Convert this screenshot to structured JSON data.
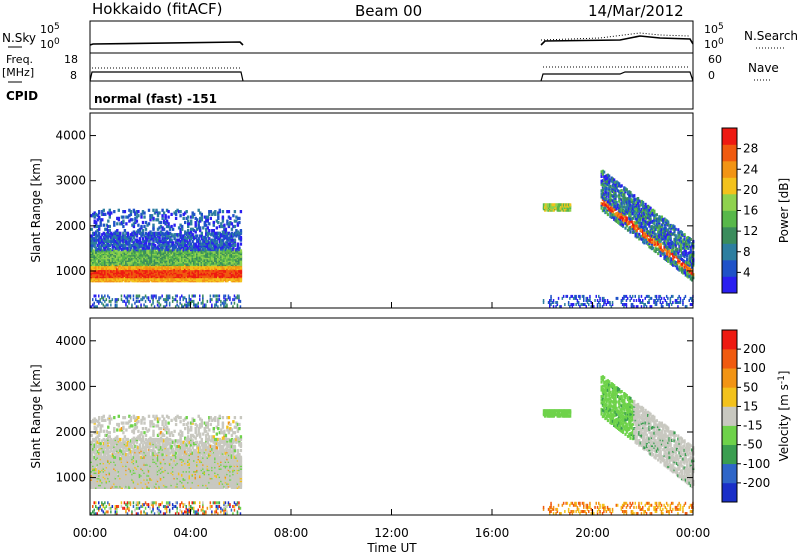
{
  "header": {
    "station": "Hokkaido (fitACF)",
    "beam": "Beam 00",
    "date": "14/Mar/2012"
  },
  "strip_labels": {
    "nsky": "N.Sky",
    "nsearch": "N.Search",
    "freq_top": "Freq.",
    "freq_unit": "[MHz]",
    "nave": "Nave",
    "cpid": "CPID",
    "mode": "normal (fast) -151"
  },
  "strip_ticks": {
    "nsky_left": [
      "10^5",
      "10^0"
    ],
    "nsky_right": [
      "10^5",
      "10^0"
    ],
    "freq_left": [
      "18",
      "8"
    ],
    "nave_right": [
      "60",
      "0"
    ]
  },
  "chart_data": [
    {
      "type": "heatmap",
      "name": "power",
      "ylabel": "Slant Range [km]",
      "xlabel": "",
      "xlim": [
        0,
        24
      ],
      "ylim": [
        180,
        4500
      ],
      "yticks": [
        1000,
        2000,
        3000,
        4000
      ],
      "ytick_labels": [
        "1000",
        "2000",
        "3000",
        "4000"
      ],
      "colorbar": {
        "label": "Power [dB]",
        "ticks": [
          "4",
          "8",
          "12",
          "16",
          "20",
          "24",
          "28"
        ],
        "colors": [
          "#2a1ff0",
          "#1f52c8",
          "#2d7ea0",
          "#3a8c5c",
          "#58b84a",
          "#8fd24e",
          "#f3c21c",
          "#f29414",
          "#f05a0f",
          "#ee1a12"
        ]
      },
      "segments": [
        {
          "start": 0.0,
          "end": 6.0,
          "note": "ionospheric backscatter ~900-2400 km, peak ~1000 km"
        },
        {
          "start": 18.0,
          "end": 24.0,
          "note": "descending arc 2500 km to 1000 km"
        }
      ]
    },
    {
      "type": "heatmap",
      "name": "velocity",
      "ylabel": "Slant Range [km]",
      "xlabel": "Time UT",
      "xlim": [
        0,
        24
      ],
      "ylim": [
        180,
        4500
      ],
      "yticks": [
        1000,
        2000,
        3000,
        4000
      ],
      "ytick_labels": [
        "1000",
        "2000",
        "3000",
        "4000"
      ],
      "xticks": [
        0,
        4,
        8,
        12,
        16,
        20,
        24
      ],
      "xtick_labels": [
        "00:00",
        "04:00",
        "08:00",
        "12:00",
        "16:00",
        "20:00",
        "00:00"
      ],
      "colorbar": {
        "label": "Velocity [m s^-1]",
        "ticks": [
          "200",
          "100",
          "50",
          "15",
          "-15",
          "-50",
          "-100",
          "-200"
        ],
        "colors": [
          "#1a2fc8",
          "#2f66c8",
          "#3a9e50",
          "#6ed24a",
          "#c8c8c0",
          "#f3c21c",
          "#f29414",
          "#f05a0f",
          "#ee1a12"
        ]
      }
    }
  ]
}
